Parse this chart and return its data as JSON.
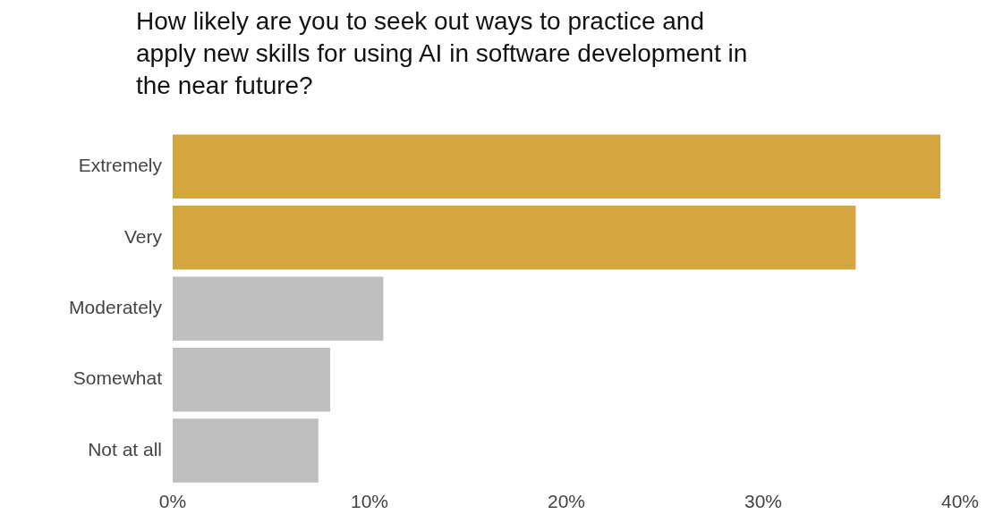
{
  "chart_data": {
    "type": "bar",
    "orientation": "horizontal",
    "title": "How likely are you to seek out ways to practice and apply new skills for using AI in software development in the near future?",
    "categories": [
      "Extremely",
      "Very",
      "Moderately",
      "Somewhat",
      "Not at all"
    ],
    "values": [
      39.0,
      34.7,
      10.7,
      8.0,
      7.4
    ],
    "colors": [
      "#d4a640",
      "#d4a640",
      "#bfbfbf",
      "#bfbfbf",
      "#bfbfbf"
    ],
    "xlim": [
      0,
      40
    ],
    "xticks": [
      {
        "value": 0,
        "label": "0%"
      },
      {
        "value": 10,
        "label": "10%"
      },
      {
        "value": 20,
        "label": "20%"
      },
      {
        "value": 30,
        "label": "30%"
      },
      {
        "value": 40,
        "label": "40%"
      }
    ],
    "grid": false,
    "legend": false
  }
}
